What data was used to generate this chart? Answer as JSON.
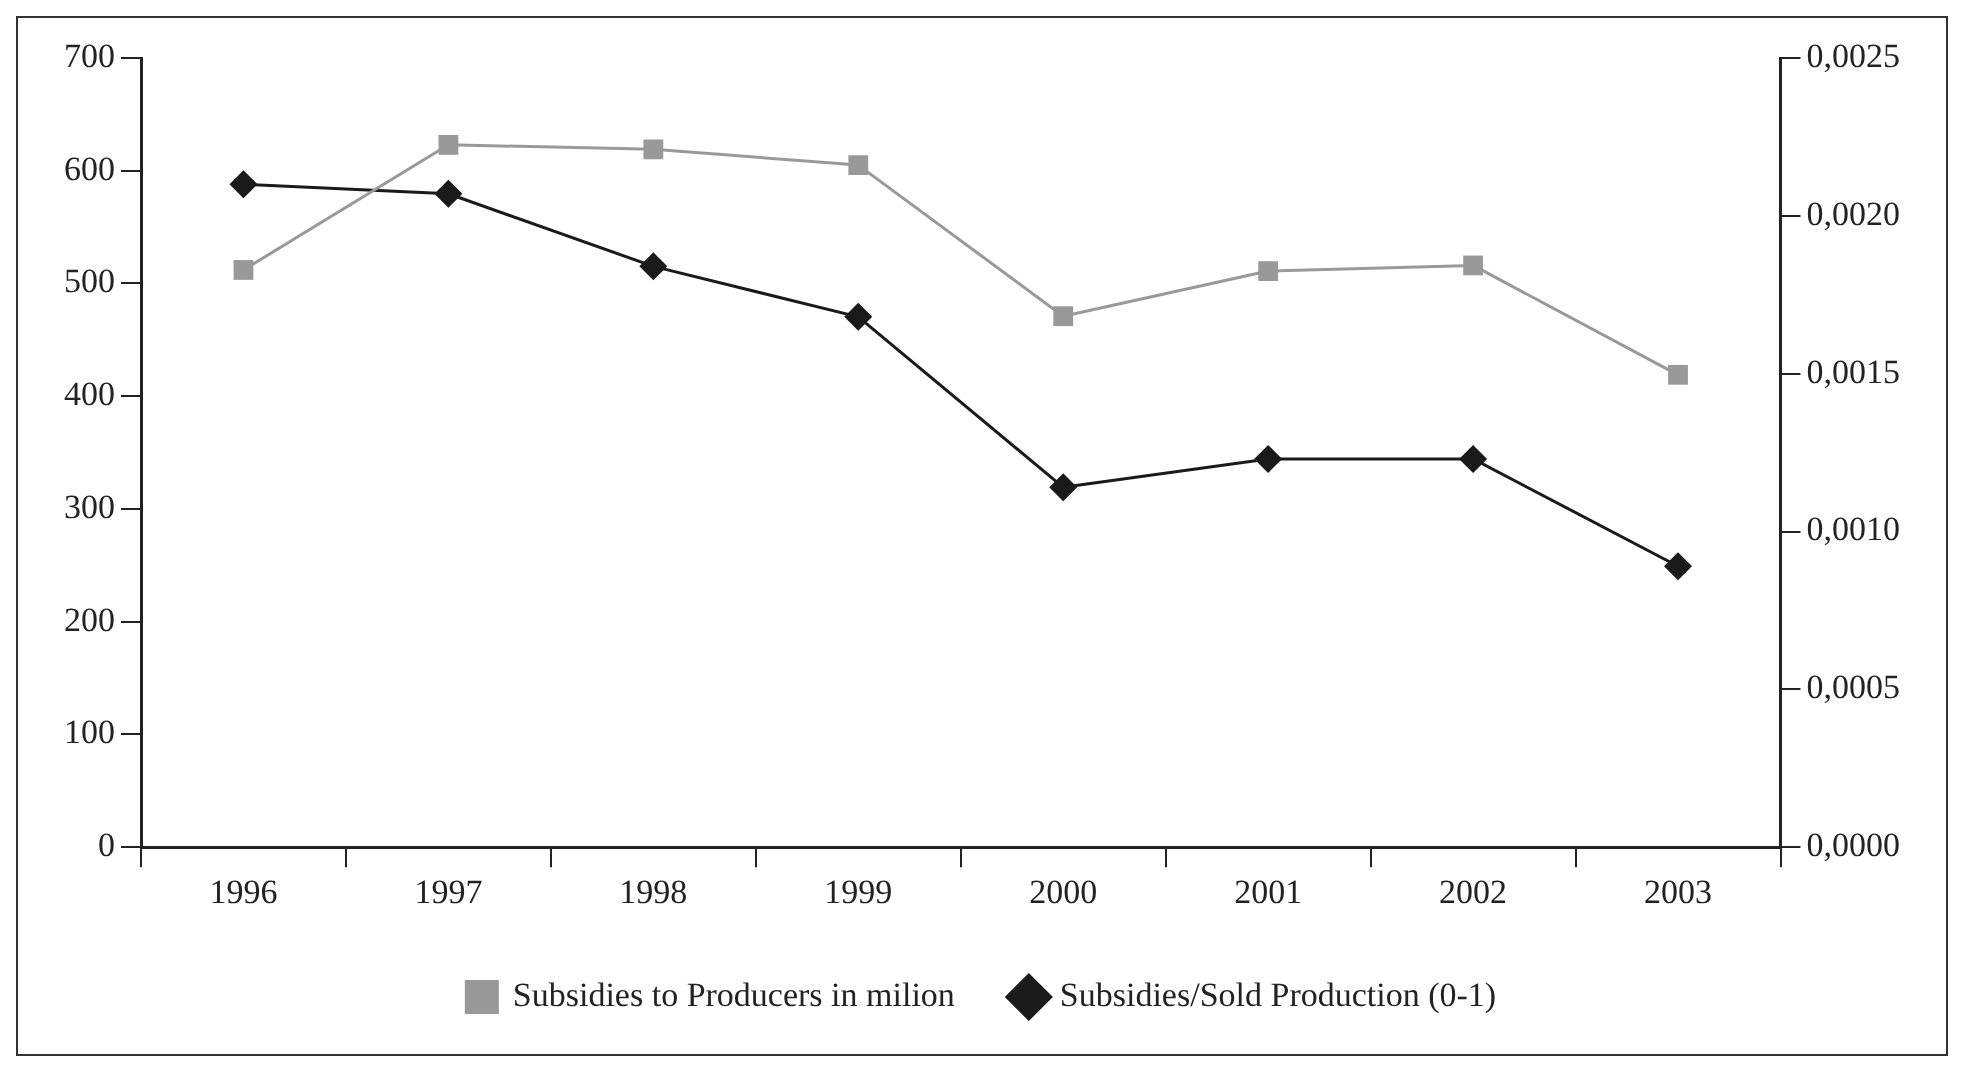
{
  "chart_data": {
    "type": "line",
    "categories": [
      "1996",
      "1997",
      "1998",
      "1999",
      "2000",
      "2001",
      "2002",
      "2003"
    ],
    "series": [
      {
        "name": "Subsidies to Producers in milion",
        "color": "#999999",
        "marker": "square",
        "values": [
          512,
          623,
          619,
          605,
          471,
          511,
          516,
          419
        ]
      },
      {
        "name": "Subsidies/Sold Production (0-1)",
        "color": "#1a1a1a",
        "marker": "diamond",
        "axis": "y2",
        "values": [
          0.0021,
          0.00207,
          0.00184,
          0.00168,
          0.00114,
          0.00123,
          0.00123,
          0.00089
        ]
      }
    ],
    "ylim": [
      0,
      700
    ],
    "yticks": [
      0,
      100,
      200,
      300,
      400,
      500,
      600,
      700
    ],
    "y2lim": [
      0,
      0.0025
    ],
    "y2ticks": [
      {
        "value": 0,
        "label": "0,0000"
      },
      {
        "value": 0.0005,
        "label": "0,0005"
      },
      {
        "value": 0.001,
        "label": "0,0010"
      },
      {
        "value": 0.0015,
        "label": "0,0015"
      },
      {
        "value": 0.002,
        "label": "0,0020"
      },
      {
        "value": 0.0025,
        "label": "0,0025"
      }
    ],
    "grid": false,
    "legend": "bottom",
    "line_style": "solid"
  }
}
